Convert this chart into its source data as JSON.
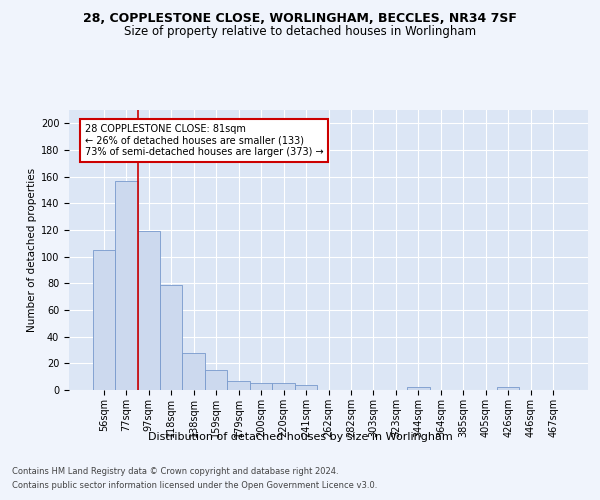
{
  "title1": "28, COPPLESTONE CLOSE, WORLINGHAM, BECCLES, NR34 7SF",
  "title2": "Size of property relative to detached houses in Worlingham",
  "xlabel": "Distribution of detached houses by size in Worlingham",
  "ylabel": "Number of detached properties",
  "categories": [
    "56sqm",
    "77sqm",
    "97sqm",
    "118sqm",
    "138sqm",
    "159sqm",
    "179sqm",
    "200sqm",
    "220sqm",
    "241sqm",
    "262sqm",
    "282sqm",
    "303sqm",
    "323sqm",
    "344sqm",
    "364sqm",
    "385sqm",
    "405sqm",
    "426sqm",
    "446sqm",
    "467sqm"
  ],
  "values": [
    105,
    157,
    119,
    79,
    28,
    15,
    7,
    5,
    5,
    4,
    0,
    0,
    0,
    0,
    2,
    0,
    0,
    0,
    2,
    0,
    0
  ],
  "bar_color": "#ccd9ee",
  "bar_edge_color": "#7799cc",
  "annotation_line1": "28 COPPLESTONE CLOSE: 81sqm",
  "annotation_line2": "← 26% of detached houses are smaller (133)",
  "annotation_line3": "73% of semi-detached houses are larger (373) →",
  "annotation_box_color": "#ffffff",
  "annotation_box_edge": "#cc0000",
  "subject_line_color": "#cc0000",
  "ylim": [
    0,
    210
  ],
  "yticks": [
    0,
    20,
    40,
    60,
    80,
    100,
    120,
    140,
    160,
    180,
    200
  ],
  "footnote1": "Contains HM Land Registry data © Crown copyright and database right 2024.",
  "footnote2": "Contains public sector information licensed under the Open Government Licence v3.0.",
  "fig_bg_color": "#f0f4fc",
  "plot_bg_color": "#dce6f5",
  "title1_fontsize": 9,
  "title2_fontsize": 8.5,
  "xlabel_fontsize": 8,
  "ylabel_fontsize": 7.5,
  "tick_fontsize": 7,
  "annotation_fontsize": 7,
  "footnote_fontsize": 6
}
